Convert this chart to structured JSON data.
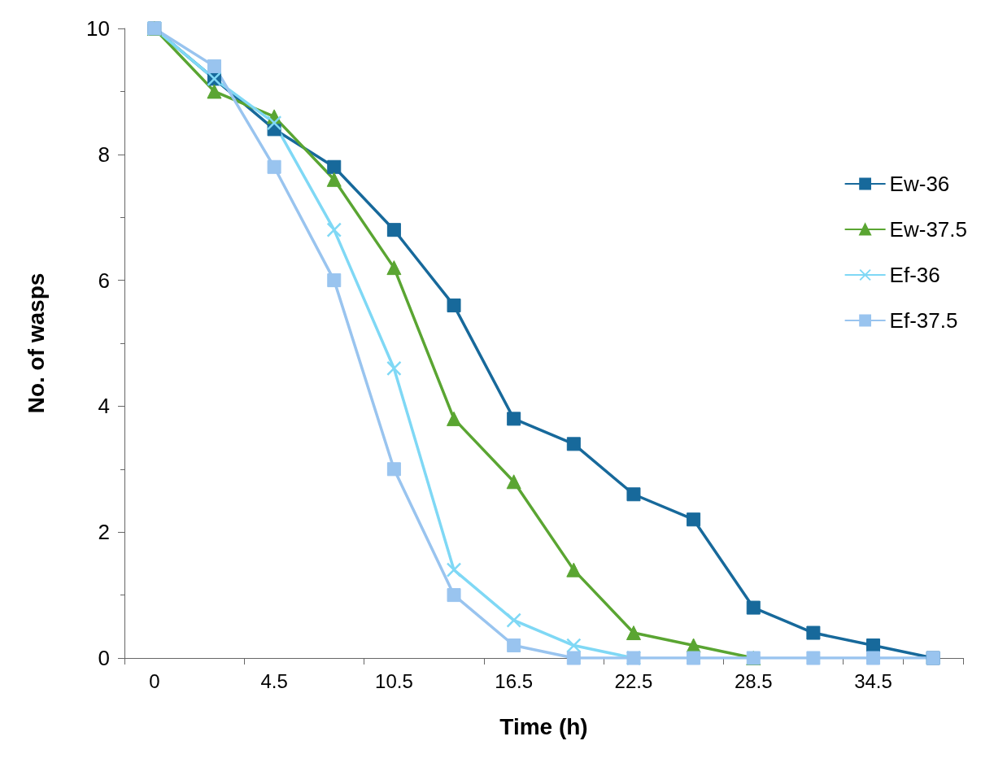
{
  "chart_data": {
    "type": "line",
    "xlabel": "Time (h)",
    "ylabel": "No. of wasps",
    "categories": [
      "0",
      null,
      "4.5",
      null,
      "10.5",
      null,
      "16.5",
      null,
      "22.5",
      null,
      "28.5",
      null,
      "34.5",
      null
    ],
    "series": [
      {
        "name": "Ew-36",
        "color": "#17699b",
        "marker": "square",
        "values": [
          10,
          9.2,
          8.4,
          7.8,
          6.8,
          5.6,
          3.8,
          3.4,
          2.6,
          2.2,
          0.8,
          0.4,
          0.2,
          0
        ]
      },
      {
        "name": "Ew-37.5",
        "color": "#5aa532",
        "marker": "triangle",
        "values": [
          10,
          9.0,
          8.6,
          7.6,
          6.2,
          3.8,
          2.8,
          1.4,
          0.4,
          0.2,
          0,
          null,
          null,
          null
        ]
      },
      {
        "name": "Ef-36",
        "color": "#7fd8f5",
        "marker": "cross",
        "values": [
          10,
          9.2,
          8.5,
          6.8,
          4.6,
          1.4,
          0.6,
          0.2,
          0,
          null,
          null,
          null,
          null,
          null
        ]
      },
      {
        "name": "Ef-37.5",
        "color": "#99c4ef",
        "marker": "square",
        "values": [
          10,
          9.4,
          7.8,
          6.0,
          3.0,
          1.0,
          0.2,
          0,
          0,
          0,
          0,
          0,
          0,
          0
        ]
      }
    ],
    "ylim": [
      0,
      10
    ],
    "yticks": [
      0,
      2,
      4,
      6,
      8,
      10
    ],
    "grid": false,
    "legend": "right"
  }
}
